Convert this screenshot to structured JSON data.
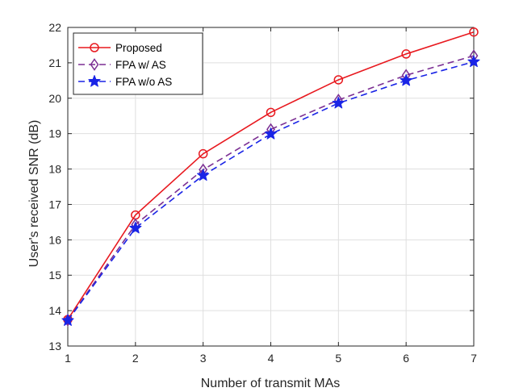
{
  "chart_data": {
    "type": "line",
    "title": "",
    "xlabel": "Number of transmit MAs",
    "ylabel": "User's received SNR (dB)",
    "x": [
      1,
      2,
      3,
      4,
      5,
      6,
      7
    ],
    "xlim": [
      1,
      7
    ],
    "ylim": [
      13,
      22
    ],
    "xticks": [
      "1",
      "2",
      "3",
      "4",
      "5",
      "6",
      "7"
    ],
    "yticks": [
      "13",
      "14",
      "15",
      "16",
      "17",
      "18",
      "19",
      "20",
      "21",
      "22"
    ],
    "grid": true,
    "legend_position": "top-left",
    "series": [
      {
        "name": "Proposed",
        "values": [
          13.75,
          16.7,
          18.43,
          19.6,
          20.52,
          21.25,
          21.87
        ],
        "color": "#e8191f",
        "line_style": "solid",
        "marker": "circle"
      },
      {
        "name": "FPA w/ AS",
        "values": [
          13.73,
          16.43,
          17.98,
          19.12,
          19.95,
          20.65,
          21.2
        ],
        "color": "#7b2f93",
        "line_style": "dashed",
        "marker": "diamond"
      },
      {
        "name": "FPA w/o AS",
        "values": [
          13.72,
          16.33,
          17.82,
          18.99,
          19.86,
          20.5,
          21.03
        ],
        "color": "#1a24e6",
        "line_style": "dashed",
        "marker": "star"
      }
    ]
  }
}
